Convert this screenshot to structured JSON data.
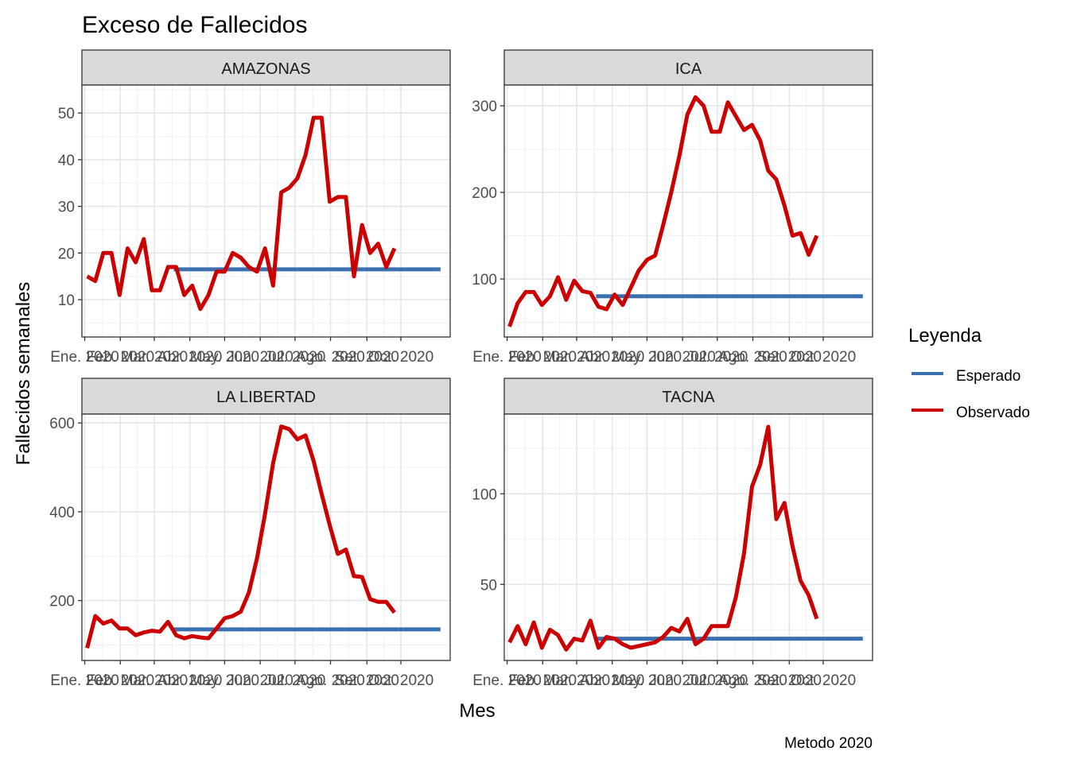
{
  "chart_data": {
    "type": "line",
    "title": "Exceso de Fallecidos",
    "xlabel": "Mes",
    "ylabel": "Fallecidos semanales",
    "caption": "Metodo 2020",
    "legend": {
      "title": "Leyenda",
      "placement": "right",
      "items": [
        {
          "name": "Esperado",
          "color": "#3a6fb0"
        },
        {
          "name": "Observado",
          "color": "#cc0000"
        }
      ]
    },
    "x_tick_labels": [
      "Ene. 2020",
      "Feb. 2020",
      "Mar. 2020",
      "Abr. 2020",
      "May. 2020",
      "Jun. 2020",
      "Jul. 2020",
      "Ago. 2020",
      "Set. 2020",
      "Oct. 2020"
    ],
    "x_tick_weeks": [
      0,
      4.4,
      8.6,
      13,
      17.3,
      21.7,
      26,
      30.4,
      34.9,
      39.1
    ],
    "x_range": [
      -0.35,
      45.2
    ],
    "grid": true,
    "panels": [
      {
        "name": "AMAZONAS",
        "ylim": [
          2,
          56
        ],
        "y_ticks": [
          10,
          20,
          30,
          40,
          50
        ],
        "expected": {
          "start": 11,
          "end": 44,
          "value": 16.5
        },
        "observed": [
          15,
          14,
          20,
          20,
          11,
          21,
          18,
          23,
          12,
          12,
          17,
          17,
          11,
          13,
          8,
          11,
          16,
          16,
          20,
          19,
          17,
          16,
          21,
          13,
          33,
          34,
          36,
          41,
          49,
          49,
          31,
          32,
          32,
          15,
          26,
          20,
          22,
          17,
          21
        ]
      },
      {
        "name": "ICA",
        "ylim": [
          33,
          324
        ],
        "y_ticks": [
          100,
          200,
          300
        ],
        "expected": {
          "start": 11,
          "end": 44,
          "value": 80
        },
        "observed": [
          45,
          72,
          85,
          85,
          70,
          80,
          102,
          76,
          98,
          86,
          84,
          68,
          65,
          82,
          70,
          90,
          110,
          122,
          127,
          162,
          200,
          242,
          290,
          310,
          300,
          270,
          270,
          304,
          288,
          272,
          278,
          260,
          225,
          215,
          185,
          150,
          153,
          128,
          150
        ]
      },
      {
        "name": "LA LIBERTAD",
        "ylim": [
          65,
          620
        ],
        "y_ticks": [
          200,
          400,
          600
        ],
        "expected": {
          "start": 11,
          "end": 44,
          "value": 135
        },
        "observed": [
          93,
          165,
          148,
          155,
          137,
          137,
          122,
          128,
          132,
          130,
          152,
          122,
          115,
          120,
          117,
          115,
          137,
          160,
          165,
          175,
          218,
          295,
          395,
          510,
          592,
          586,
          563,
          572,
          515,
          440,
          370,
          305,
          315,
          255,
          253,
          203,
          197,
          197,
          173
        ]
      },
      {
        "name": "TACNA",
        "ylim": [
          8,
          144
        ],
        "y_ticks": [
          50,
          100
        ],
        "expected": {
          "start": 11,
          "end": 44,
          "value": 20
        },
        "observed": [
          18,
          27,
          17,
          29,
          15,
          25,
          22,
          14,
          20,
          19,
          30,
          15,
          21,
          20,
          17,
          15,
          16,
          17,
          18,
          21,
          26,
          24,
          31,
          17,
          20,
          27,
          27,
          27,
          43,
          67,
          104,
          116,
          137,
          86,
          95,
          71,
          52,
          44,
          31
        ]
      }
    ]
  }
}
